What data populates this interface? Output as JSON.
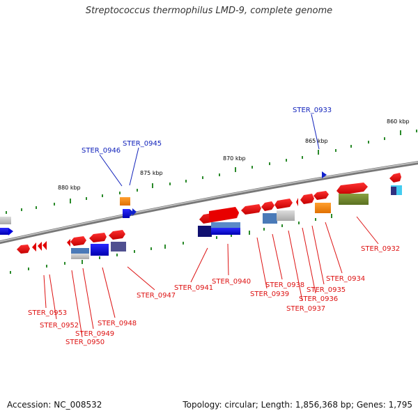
{
  "title": "Streptococcus thermophilus LMD-9, complete genome",
  "footer": {
    "accession": "Accession: NC_008532",
    "summary": "Topology: circular; Length: 1,856,368 bp; Genes: 1,795"
  },
  "colors": {
    "label_red": "#dd1111",
    "label_blue": "#1122bb",
    "backbone": "#8a8a8a",
    "tick_green": "#2a8a2a"
  },
  "scale_labels": [
    "880 kbp",
    "875 kbp",
    "870 kbp",
    "865 kbp",
    "860 kbp"
  ],
  "gene_labels": [
    {
      "text": "STER_0933",
      "color": "blue"
    },
    {
      "text": "STER_0946",
      "color": "blue"
    },
    {
      "text": "STER_0945",
      "color": "blue"
    },
    {
      "text": "STER_0932",
      "color": "red"
    },
    {
      "text": "STER_0934",
      "color": "red"
    },
    {
      "text": "STER_0935",
      "color": "red"
    },
    {
      "text": "STER_0936",
      "color": "red"
    },
    {
      "text": "STER_0937",
      "color": "red"
    },
    {
      "text": "STER_0938",
      "color": "red"
    },
    {
      "text": "STER_0939",
      "color": "red"
    },
    {
      "text": "STER_0940",
      "color": "red"
    },
    {
      "text": "STER_0941",
      "color": "red"
    },
    {
      "text": "STER_0947",
      "color": "red"
    },
    {
      "text": "STER_0948",
      "color": "red"
    },
    {
      "text": "STER_0949",
      "color": "red"
    },
    {
      "text": "STER_0950",
      "color": "red"
    },
    {
      "text": "STER_0952",
      "color": "red"
    },
    {
      "text": "STER_0953",
      "color": "red"
    }
  ]
}
